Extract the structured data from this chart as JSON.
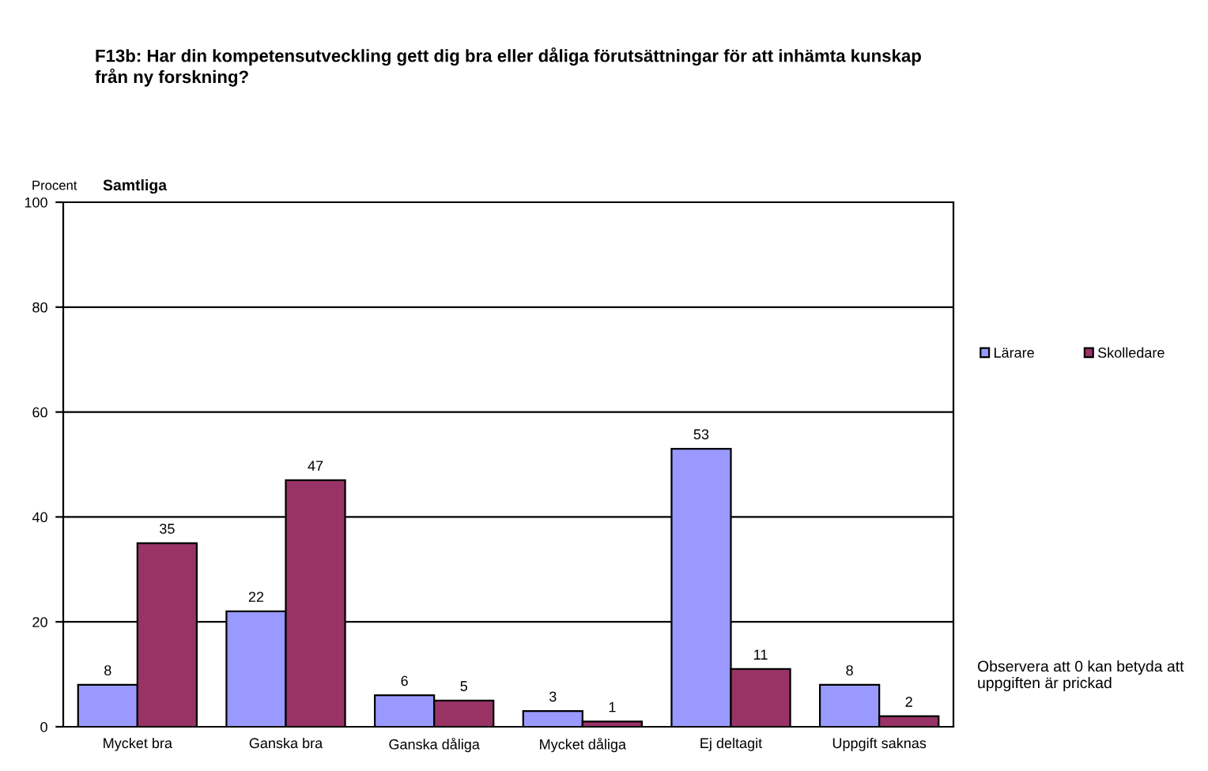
{
  "chart_data": {
    "type": "bar",
    "title": "F13b: Har din kompetensutveckling gett dig bra eller dåliga förutsättningar för att inhämta kunskap\nfrån ny forskning?",
    "subtitle": "Samtliga",
    "ylabel": "Procent",
    "categories": [
      "Mycket bra",
      "Ganska bra",
      "Ganska dåliga",
      "Mycket dåliga",
      "Ej deltagit",
      "Uppgift saknas"
    ],
    "series": [
      {
        "name": "Lärare",
        "color": "#9999ff",
        "values": [
          8,
          22,
          6,
          3,
          53,
          8
        ]
      },
      {
        "name": "Skolledare",
        "color": "#993366",
        "values": [
          35,
          47,
          5,
          1,
          11,
          2
        ]
      }
    ],
    "ylim": [
      0,
      100
    ],
    "yticks": [
      0,
      20,
      40,
      60,
      80,
      100
    ],
    "grid": "y",
    "legend": "right",
    "data_labels": true,
    "annotations": [
      "Observera att 0 kan betyda att\nuppgiften är prickad"
    ]
  }
}
